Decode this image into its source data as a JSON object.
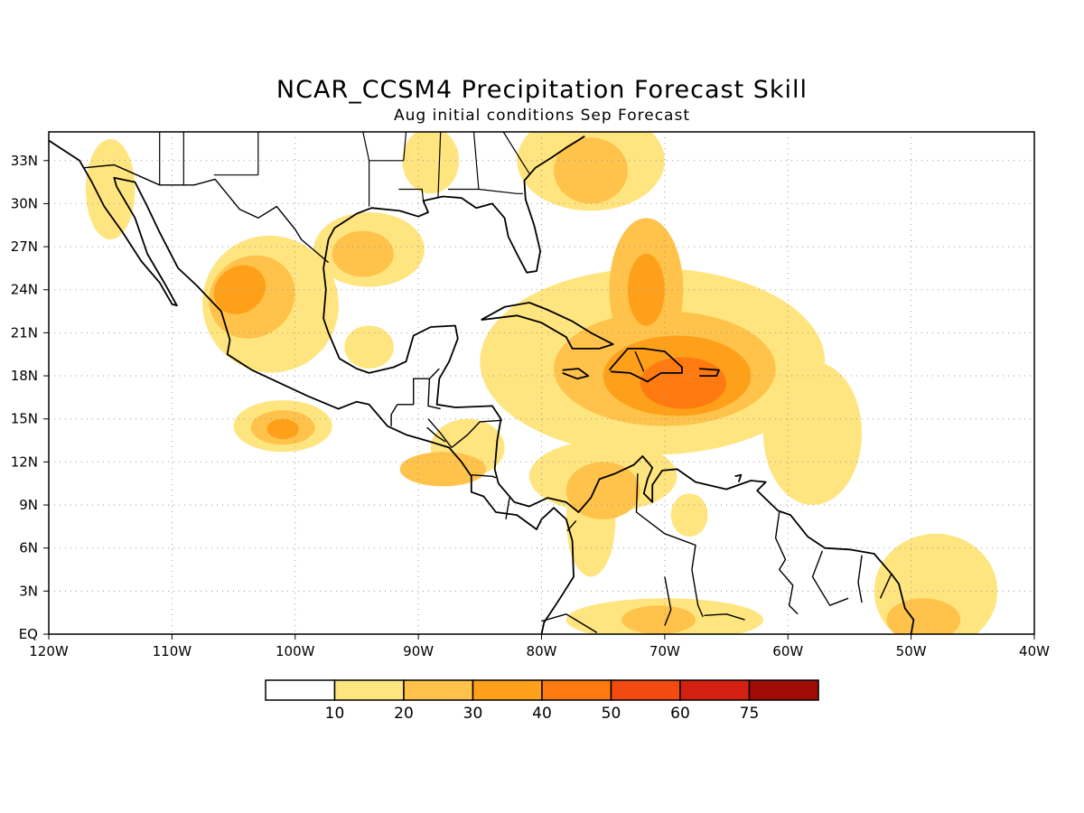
{
  "title": "NCAR_CCSM4 Precipitation Forecast Skill",
  "subtitle": "Aug initial conditions  Sep Forecast",
  "lat_labels": [
    "33N",
    "30N",
    "27N",
    "24N",
    "21N",
    "18N",
    "15N",
    "12N",
    "9N",
    "6N",
    "3N",
    "EQ"
  ],
  "lon_labels": [
    "120W",
    "110W",
    "100W",
    "90W",
    "80W",
    "70W",
    "60W",
    "50W",
    "40W"
  ],
  "colorbar": {
    "labels": [
      "10",
      "20",
      "30",
      "40",
      "50",
      "60",
      "75"
    ],
    "colors": [
      "#ffffff",
      "#ffe57f",
      "#ffc24a",
      "#ffa01a",
      "#ff7a10",
      "#f24a10",
      "#d42010",
      "#a00c06"
    ]
  },
  "map_extent": {
    "lon": [
      -120,
      -40
    ],
    "lat": [
      0,
      35
    ]
  },
  "skill_regions": [
    {
      "lon": -102,
      "lat": 23,
      "rlon": 5.5,
      "rlat": 4.8,
      "rot": -35,
      "level": 1
    },
    {
      "lon": -103.5,
      "lat": 23.5,
      "rlon": 3.6,
      "rlat": 2.8,
      "rot": -35,
      "level": 2
    },
    {
      "lon": -104.5,
      "lat": 24,
      "rlon": 2.2,
      "rlat": 1.6,
      "rot": -35,
      "level": 3
    },
    {
      "lon": -94,
      "lat": 26.8,
      "rlon": 4.5,
      "rlat": 2.6,
      "rot": 0,
      "level": 1
    },
    {
      "lon": -94.5,
      "lat": 26.5,
      "rlon": 2.5,
      "rlat": 1.6,
      "rot": 0,
      "level": 2
    },
    {
      "lon": -101,
      "lat": 14.5,
      "rlon": 4,
      "rlat": 1.8,
      "rot": 0,
      "level": 1
    },
    {
      "lon": -101,
      "lat": 14.4,
      "rlon": 2.6,
      "rlat": 1.2,
      "rot": 0,
      "level": 2
    },
    {
      "lon": -101,
      "lat": 14.3,
      "rlon": 1.3,
      "rlat": 0.7,
      "rot": 0,
      "level": 3
    },
    {
      "lon": -115,
      "lat": 31,
      "rlon": 2,
      "rlat": 3.5,
      "rot": 0,
      "level": 1
    },
    {
      "lon": -89,
      "lat": 33,
      "rlon": 2.3,
      "rlat": 2.3,
      "rot": 0,
      "level": 1
    },
    {
      "lon": -76,
      "lat": 33,
      "rlon": 6,
      "rlat": 3.5,
      "rot": 0,
      "level": 1
    },
    {
      "lon": -76,
      "lat": 32.3,
      "rlon": 3,
      "rlat": 2.3,
      "rot": 0,
      "level": 2
    },
    {
      "lon": -71,
      "lat": 19,
      "rlon": 14,
      "rlat": 6.5,
      "rot": 0,
      "level": 1
    },
    {
      "lon": -70,
      "lat": 18.5,
      "rlon": 9,
      "rlat": 4,
      "rot": 0,
      "level": 2
    },
    {
      "lon": -69,
      "lat": 18,
      "rlon": 6,
      "rlat": 2.8,
      "rot": 0,
      "level": 3
    },
    {
      "lon": -68.5,
      "lat": 17.5,
      "rlon": 3.5,
      "rlat": 1.8,
      "rot": 0,
      "level": 4
    },
    {
      "lon": -71.5,
      "lat": 24,
      "rlon": 3,
      "rlat": 5,
      "rot": 0,
      "level": 2
    },
    {
      "lon": -71.5,
      "lat": 24,
      "rlon": 1.5,
      "rlat": 2.5,
      "rot": 0,
      "level": 3
    },
    {
      "lon": -58,
      "lat": 14,
      "rlon": 4,
      "rlat": 5,
      "rot": 0,
      "level": 1
    },
    {
      "lon": -75,
      "lat": 11,
      "rlon": 6,
      "rlat": 2.5,
      "rot": 0,
      "level": 1
    },
    {
      "lon": -75,
      "lat": 10,
      "rlon": 3,
      "rlat": 2,
      "rot": 0,
      "level": 2
    },
    {
      "lon": -76,
      "lat": 8,
      "rlon": 2,
      "rlat": 4,
      "rot": 0,
      "level": 1
    },
    {
      "lon": -88,
      "lat": 11.5,
      "rlon": 3.5,
      "rlat": 1.2,
      "rot": 0,
      "level": 2
    },
    {
      "lon": -86,
      "lat": 13,
      "rlon": 3,
      "rlat": 2,
      "rot": 0,
      "level": 1
    },
    {
      "lon": -48,
      "lat": 3,
      "rlon": 5,
      "rlat": 4,
      "rot": 0,
      "level": 1
    },
    {
      "lon": -49,
      "lat": 1,
      "rlon": 3,
      "rlat": 1.5,
      "rot": 0,
      "level": 2
    },
    {
      "lon": -70,
      "lat": 1,
      "rlon": 8,
      "rlat": 1.5,
      "rot": 0,
      "level": 1
    },
    {
      "lon": -70.5,
      "lat": 1,
      "rlon": 3,
      "rlat": 1,
      "rot": 0,
      "level": 2
    },
    {
      "lon": -68,
      "lat": 8.3,
      "rlon": 1.5,
      "rlat": 1.5,
      "rot": 0,
      "level": 1
    },
    {
      "lon": -94,
      "lat": 20,
      "rlon": 2,
      "rlat": 1.5,
      "rot": 0,
      "level": 1
    }
  ],
  "coastlines": [
    [
      [
        -120,
        34.4
      ],
      [
        -117.5,
        33
      ],
      [
        -116.5,
        31.5
      ],
      [
        -115.5,
        29.8
      ],
      [
        -114,
        28
      ],
      [
        -112.5,
        26
      ],
      [
        -111,
        24.5
      ],
      [
        -110,
        23
      ],
      [
        -109.6,
        22.9
      ],
      [
        -110.5,
        24.3
      ],
      [
        -112,
        26.5
      ],
      [
        -113,
        29
      ],
      [
        -114.5,
        31.2
      ],
      [
        -114.7,
        31.8
      ],
      [
        -113,
        31.5
      ],
      [
        -112,
        29.8
      ],
      [
        -111,
        28
      ],
      [
        -109.5,
        25.5
      ],
      [
        -108,
        24.3
      ],
      [
        -106,
        22.5
      ],
      [
        -105.3,
        20.5
      ],
      [
        -105.5,
        19.5
      ],
      [
        -103.5,
        18.4
      ],
      [
        -101.5,
        17.6
      ],
      [
        -99,
        16.6
      ],
      [
        -96.5,
        15.7
      ],
      [
        -95,
        16.2
      ],
      [
        -94,
        16
      ],
      [
        -92.5,
        14.5
      ],
      [
        -91,
        13.9
      ],
      [
        -89,
        13.4
      ],
      [
        -87.5,
        13
      ],
      [
        -86.5,
        12
      ],
      [
        -85.7,
        11
      ],
      [
        -85.7,
        9.9
      ],
      [
        -84.7,
        9.6
      ],
      [
        -83.7,
        8.5
      ],
      [
        -82,
        8.3
      ],
      [
        -80.4,
        7.3
      ],
      [
        -80,
        8
      ],
      [
        -79,
        8.8
      ],
      [
        -78,
        8
      ],
      [
        -77.5,
        6.5
      ],
      [
        -77.4,
        4
      ],
      [
        -78.5,
        2.5
      ],
      [
        -79.8,
        0.8
      ],
      [
        -80,
        0
      ]
    ],
    [
      [
        -97.3,
        27.5
      ],
      [
        -97.7,
        25.5
      ],
      [
        -97.5,
        24
      ],
      [
        -97.7,
        22
      ],
      [
        -97.3,
        21
      ],
      [
        -96.4,
        19.2
      ],
      [
        -95,
        18.5
      ],
      [
        -94,
        18.2
      ],
      [
        -92,
        18.6
      ],
      [
        -91,
        19
      ],
      [
        -90.4,
        20.8
      ],
      [
        -89,
        21.4
      ],
      [
        -87,
        21.5
      ],
      [
        -86.8,
        20.6
      ],
      [
        -87.5,
        19
      ],
      [
        -88.3,
        17.8
      ],
      [
        -88.5,
        16
      ],
      [
        -87,
        15.8
      ],
      [
        -84,
        15.9
      ],
      [
        -83.3,
        15
      ],
      [
        -83.6,
        13.5
      ],
      [
        -83.8,
        11.5
      ],
      [
        -83.5,
        10.5
      ],
      [
        -82.2,
        9.2
      ],
      [
        -81,
        8.9
      ],
      [
        -79.5,
        9.5
      ],
      [
        -78,
        9.2
      ],
      [
        -77,
        8.5
      ],
      [
        -76,
        9.5
      ],
      [
        -75.3,
        10.8
      ],
      [
        -74,
        11.2
      ],
      [
        -72.5,
        11.8
      ],
      [
        -71.8,
        12.4
      ],
      [
        -71,
        11.6
      ],
      [
        -71.4,
        10.8
      ],
      [
        -71.7,
        9.8
      ],
      [
        -71,
        9.2
      ],
      [
        -71,
        10.4
      ],
      [
        -70.2,
        11.4
      ],
      [
        -69,
        11.5
      ],
      [
        -67.5,
        10.6
      ],
      [
        -65,
        10.1
      ],
      [
        -63,
        10.7
      ],
      [
        -61.8,
        10.6
      ],
      [
        -62.5,
        10
      ],
      [
        -60.8,
        8.6
      ],
      [
        -59.8,
        8.3
      ],
      [
        -58.4,
        6.8
      ],
      [
        -57,
        6
      ],
      [
        -55,
        5.9
      ],
      [
        -53,
        5.6
      ],
      [
        -51.6,
        4.2
      ],
      [
        -51,
        3.5
      ],
      [
        -50.5,
        1.8
      ],
      [
        -49.8,
        1
      ],
      [
        -50,
        0
      ]
    ],
    [
      [
        -97.3,
        27.5
      ],
      [
        -96.8,
        28.3
      ],
      [
        -95,
        29.3
      ],
      [
        -93.8,
        29.7
      ],
      [
        -91.5,
        29.5
      ],
      [
        -90,
        29.1
      ],
      [
        -89.2,
        29.4
      ],
      [
        -89.6,
        30.2
      ],
      [
        -88,
        30.5
      ],
      [
        -86.5,
        30.4
      ],
      [
        -85.3,
        29.7
      ],
      [
        -84,
        30
      ],
      [
        -83,
        29
      ],
      [
        -82.7,
        27.7
      ],
      [
        -82,
        26.5
      ],
      [
        -81.2,
        25.2
      ],
      [
        -80.4,
        25.3
      ],
      [
        -80.1,
        26.7
      ],
      [
        -80.6,
        28.5
      ],
      [
        -81.3,
        30.3
      ],
      [
        -81.4,
        31.6
      ],
      [
        -80.5,
        32.5
      ],
      [
        -79.2,
        33.2
      ],
      [
        -78,
        33.9
      ],
      [
        -76.5,
        34.7
      ]
    ],
    [
      [
        -84.9,
        21.9
      ],
      [
        -83,
        22.8
      ],
      [
        -81,
        23.1
      ],
      [
        -79.5,
        22.6
      ],
      [
        -77.5,
        21.8
      ],
      [
        -76,
        21
      ],
      [
        -74.2,
        20.2
      ],
      [
        -75.3,
        19.9
      ],
      [
        -77.5,
        19.9
      ],
      [
        -78,
        20.7
      ],
      [
        -80,
        21.7
      ],
      [
        -82,
        22.2
      ],
      [
        -84.9,
        21.9
      ]
    ],
    [
      [
        -74.5,
        18.4
      ],
      [
        -73,
        19.9
      ],
      [
        -71.7,
        19.9
      ],
      [
        -70,
        19.7
      ],
      [
        -68.6,
        18.6
      ],
      [
        -68.6,
        18.2
      ],
      [
        -70.3,
        18.2
      ],
      [
        -71.4,
        17.6
      ],
      [
        -72.8,
        18.2
      ],
      [
        -74.4,
        18.3
      ]
    ],
    [
      [
        -78.3,
        18.4
      ],
      [
        -77,
        18.5
      ],
      [
        -76.2,
        18
      ],
      [
        -77.1,
        17.8
      ],
      [
        -78.3,
        18.2
      ]
    ],
    [
      [
        -67.2,
        18.5
      ],
      [
        -65.6,
        18.4
      ],
      [
        -65.8,
        18
      ],
      [
        -67.2,
        18
      ]
    ],
    [
      [
        -64,
        10.6
      ],
      [
        -63.8,
        11.1
      ],
      [
        -64.3,
        11
      ]
    ]
  ],
  "borders": [
    [
      [
        -117.1,
        32.5
      ],
      [
        -114.7,
        32.7
      ],
      [
        -111,
        31.3
      ],
      [
        -108.2,
        31.3
      ],
      [
        -106.5,
        31.7
      ],
      [
        -104.5,
        29.6
      ],
      [
        -103,
        29
      ],
      [
        -101.5,
        29.8
      ],
      [
        -100,
        28.2
      ],
      [
        -99.5,
        27.5
      ],
      [
        -97.3,
        25.9
      ]
    ],
    [
      [
        -92.2,
        14.5
      ],
      [
        -92.2,
        15.3
      ],
      [
        -91.7,
        16
      ],
      [
        -90.4,
        16
      ],
      [
        -90.4,
        17.8
      ],
      [
        -89.1,
        17.8
      ],
      [
        -88.3,
        18.5
      ]
    ],
    [
      [
        -89.1,
        17.8
      ],
      [
        -89.2,
        15.9
      ],
      [
        -88.2,
        15.7
      ]
    ],
    [
      [
        -89.3,
        14.4
      ],
      [
        -88.5,
        13.8
      ],
      [
        -87.8,
        13.4
      ]
    ],
    [
      [
        -89.2,
        15
      ],
      [
        -88.2,
        14
      ],
      [
        -87.3,
        13
      ]
    ],
    [
      [
        -87.3,
        13
      ],
      [
        -86,
        13.9
      ],
      [
        -85,
        14.8
      ],
      [
        -83.2,
        14.9
      ]
    ],
    [
      [
        -85.7,
        11.1
      ],
      [
        -84,
        11
      ],
      [
        -83.7,
        10.9
      ]
    ],
    [
      [
        -82.9,
        8
      ],
      [
        -82.6,
        9.5
      ]
    ],
    [
      [
        -77.2,
        7.9
      ],
      [
        -77.9,
        7.2
      ]
    ],
    [
      [
        -72.2,
        11.2
      ],
      [
        -72.3,
        8.5
      ],
      [
        -70,
        7
      ],
      [
        -67.5,
        6.2
      ],
      [
        -67.8,
        4.5
      ],
      [
        -67.3,
        2
      ],
      [
        -66.9,
        1.2
      ]
    ],
    [
      [
        -60.7,
        8.5
      ],
      [
        -61,
        6.7
      ],
      [
        -60.2,
        5.2
      ],
      [
        -60.7,
        4.5
      ],
      [
        -59.6,
        3.4
      ],
      [
        -59.9,
        2
      ],
      [
        -59.2,
        1.4
      ]
    ],
    [
      [
        -57.2,
        5.8
      ],
      [
        -58,
        4
      ],
      [
        -56.6,
        2
      ],
      [
        -55.1,
        2.5
      ]
    ],
    [
      [
        -54.0,
        5.5
      ],
      [
        -54.3,
        3.6
      ],
      [
        -54,
        2.2
      ]
    ],
    [
      [
        -51.6,
        4.2
      ],
      [
        -52.5,
        2.5
      ]
    ],
    [
      [
        -72.4,
        19.7
      ],
      [
        -71.7,
        18.3
      ]
    ],
    [
      [
        -80,
        0.9
      ],
      [
        -78,
        1.4
      ],
      [
        -75.5,
        0.1
      ]
    ],
    [
      [
        -70,
        4
      ],
      [
        -69.5,
        1.7
      ],
      [
        -70,
        0.6
      ]
    ],
    [
      [
        -63.5,
        1
      ],
      [
        -65,
        1.4
      ],
      [
        -66.8,
        1.3
      ]
    ]
  ],
  "us_states": [
    [
      [
        -111,
        31.3
      ],
      [
        -111,
        35
      ]
    ],
    [
      [
        -109.05,
        31.3
      ],
      [
        -109.05,
        35
      ]
    ],
    [
      [
        -103,
        32
      ],
      [
        -103,
        35
      ]
    ],
    [
      [
        -103,
        32
      ],
      [
        -106.6,
        32
      ]
    ],
    [
      [
        -94,
        29.8
      ],
      [
        -94,
        33
      ]
    ],
    [
      [
        -94,
        33
      ],
      [
        -91.2,
        33
      ]
    ],
    [
      [
        -94,
        33
      ],
      [
        -94.5,
        35
      ]
    ],
    [
      [
        -91.6,
        31
      ],
      [
        -89.7,
        31
      ],
      [
        -89.6,
        30.2
      ]
    ],
    [
      [
        -88.4,
        30.4
      ],
      [
        -88.2,
        35
      ]
    ],
    [
      [
        -85.1,
        31
      ],
      [
        -85.5,
        35
      ]
    ],
    [
      [
        -87.6,
        31
      ],
      [
        -85.1,
        31
      ],
      [
        -82,
        30.7
      ],
      [
        -81.5,
        30.7
      ]
    ],
    [
      [
        -91.2,
        33
      ],
      [
        -91,
        35
      ]
    ],
    [
      [
        -83.1,
        35
      ],
      [
        -81,
        32.1
      ]
    ]
  ]
}
